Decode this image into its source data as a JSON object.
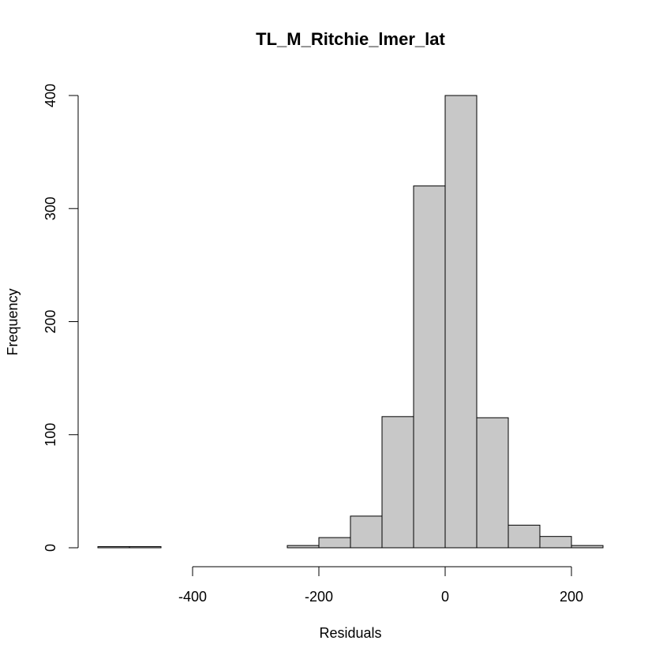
{
  "chart_data": {
    "type": "bar",
    "title": "TL_M_Ritchie_lmer_lat",
    "xlabel": "Residuals",
    "ylabel": "Frequency",
    "xlim": [
      -550,
      250
    ],
    "ylim": [
      0,
      400
    ],
    "x_ticks": [
      -400,
      -200,
      0,
      200
    ],
    "x_tick_labels": [
      "-400",
      "-200",
      "0",
      "200"
    ],
    "x_axis_range": [
      -400,
      200
    ],
    "y_ticks": [
      0,
      100,
      200,
      300,
      400
    ],
    "y_tick_labels": [
      "0",
      "100",
      "200",
      "300",
      "400"
    ],
    "bar_color": "#c8c8c8",
    "bin_width": 50,
    "bins": [
      {
        "x0": -550,
        "x1": -500,
        "value": 1
      },
      {
        "x0": -500,
        "x1": -450,
        "value": 1
      },
      {
        "x0": -450,
        "x1": -400,
        "value": 0
      },
      {
        "x0": -400,
        "x1": -350,
        "value": 0
      },
      {
        "x0": -350,
        "x1": -300,
        "value": 0
      },
      {
        "x0": -300,
        "x1": -250,
        "value": 0
      },
      {
        "x0": -250,
        "x1": -200,
        "value": 2
      },
      {
        "x0": -200,
        "x1": -150,
        "value": 9
      },
      {
        "x0": -150,
        "x1": -100,
        "value": 28
      },
      {
        "x0": -100,
        "x1": -50,
        "value": 116
      },
      {
        "x0": -50,
        "x1": 0,
        "value": 320
      },
      {
        "x0": 0,
        "x1": 50,
        "value": 400
      },
      {
        "x0": 50,
        "x1": 100,
        "value": 115
      },
      {
        "x0": 100,
        "x1": 150,
        "value": 20
      },
      {
        "x0": 150,
        "x1": 200,
        "value": 10
      },
      {
        "x0": 200,
        "x1": 250,
        "value": 2
      }
    ]
  }
}
